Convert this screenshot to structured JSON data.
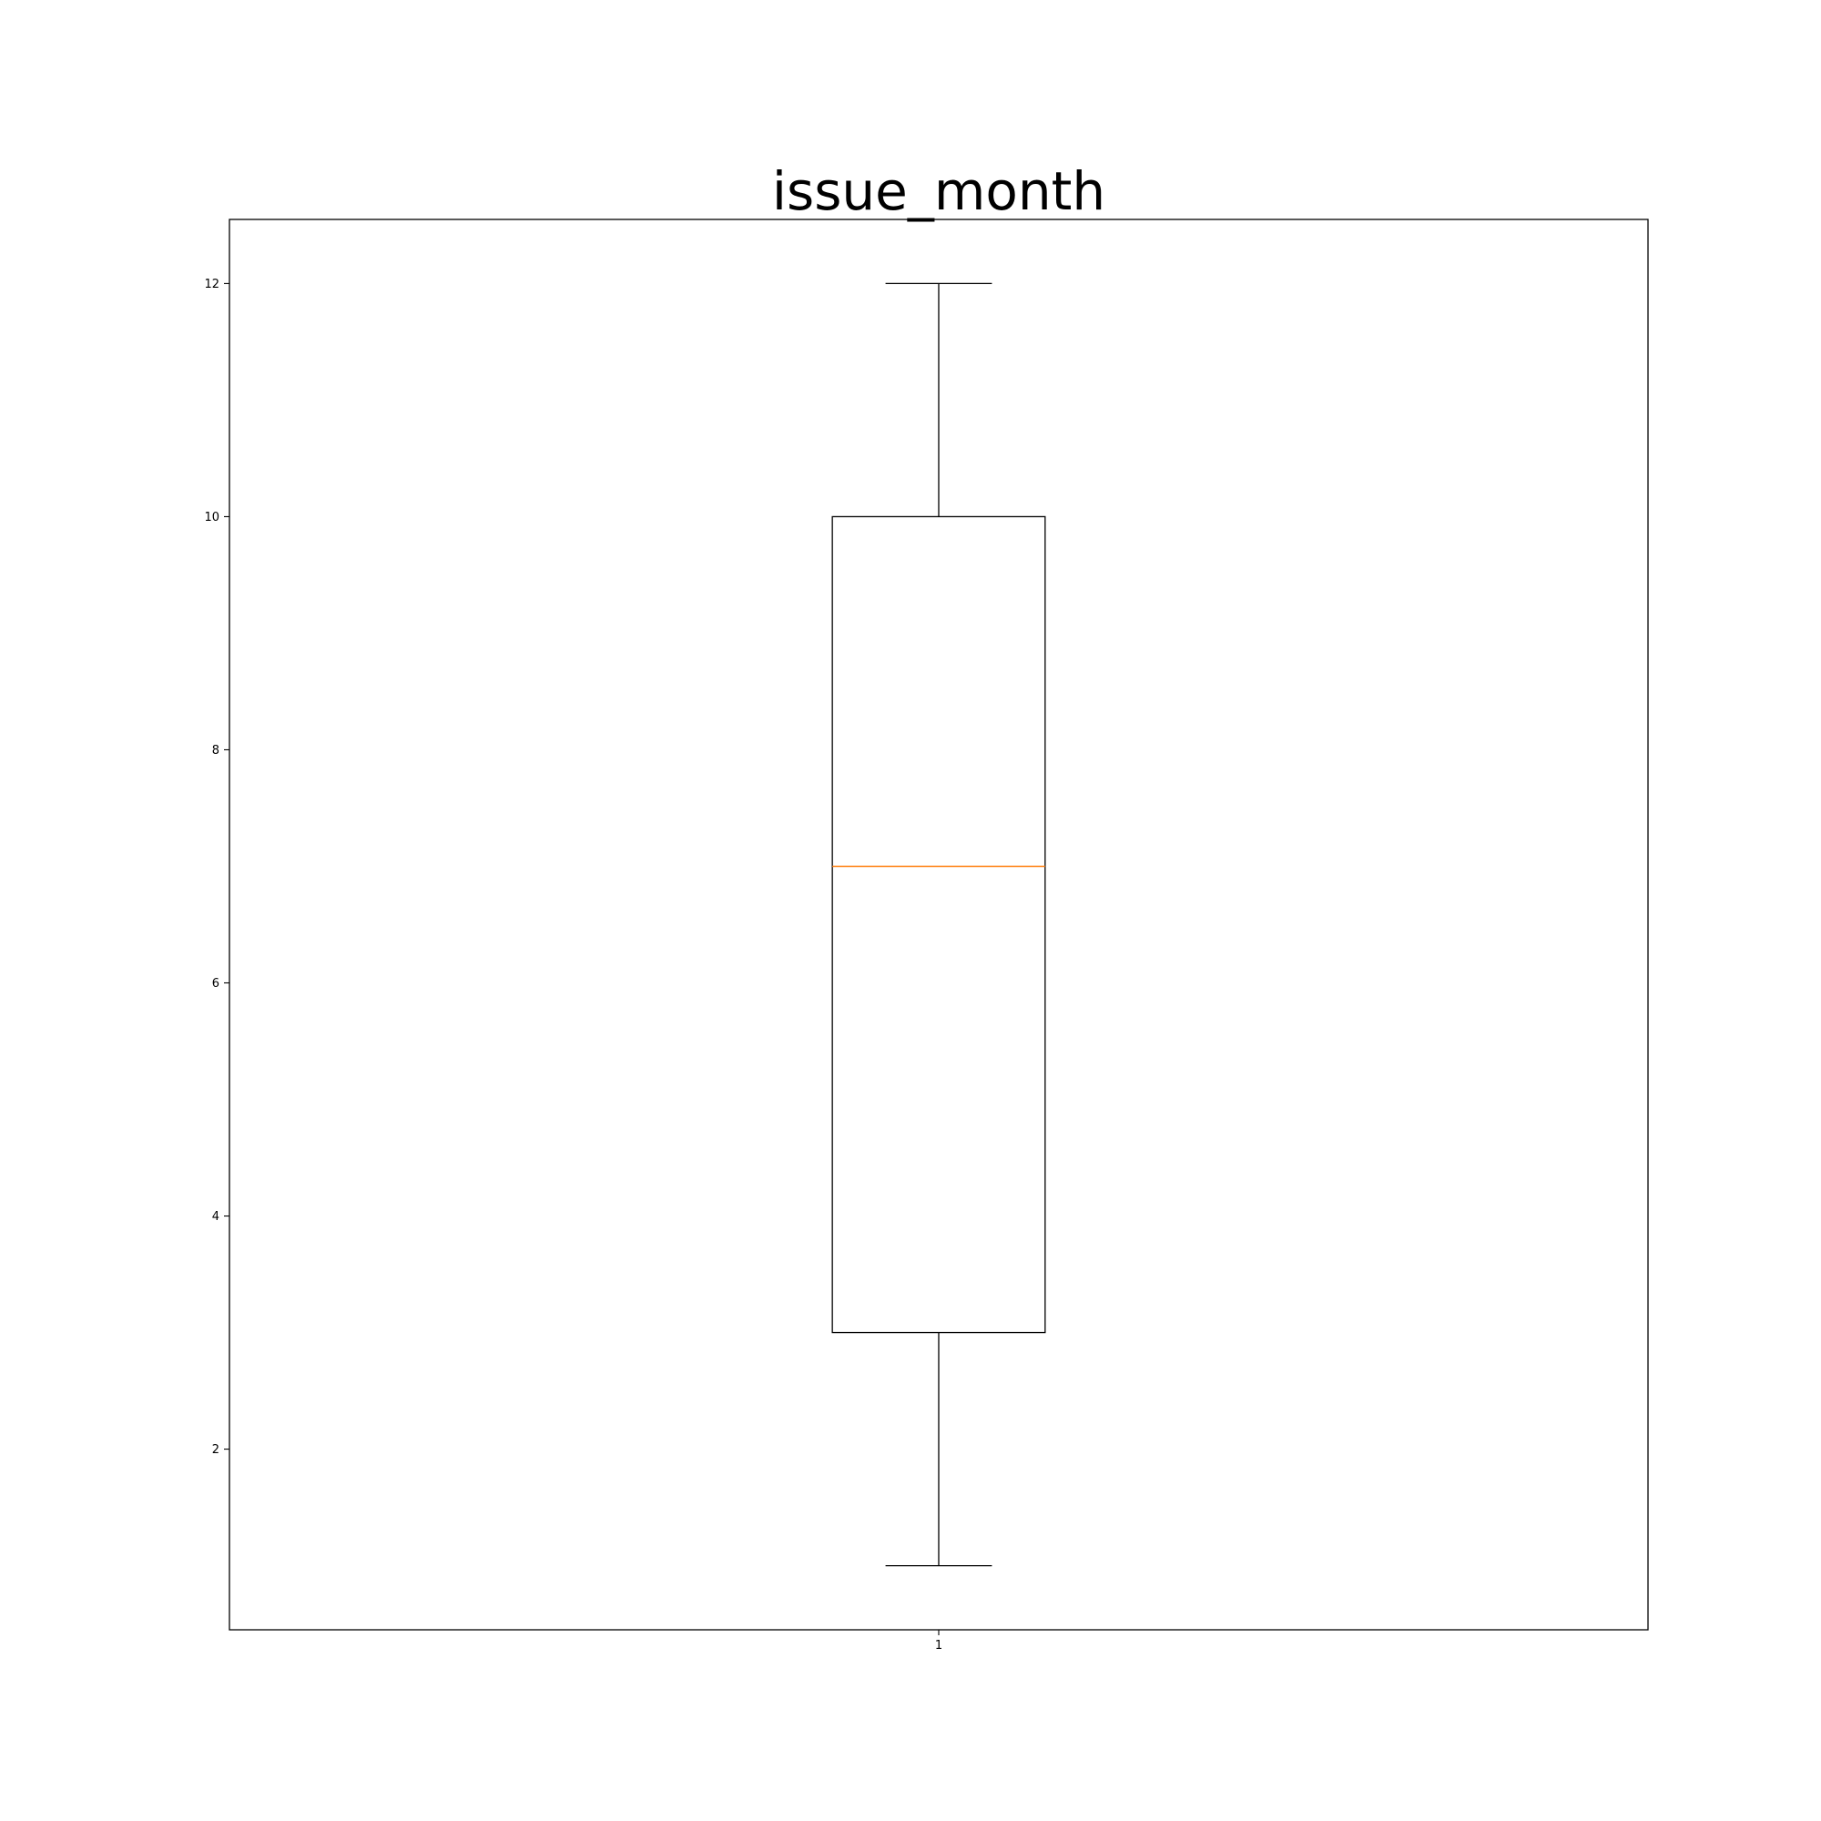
{
  "chart_data": {
    "type": "box",
    "title": "issue_month",
    "xlabel": "",
    "ylabel": "",
    "ylim": [
      0.45,
      12.55
    ],
    "y_ticks": [
      2,
      4,
      6,
      8,
      10,
      12
    ],
    "categories": [
      "1"
    ],
    "boxes": [
      {
        "category": "1",
        "whisker_low": 1,
        "q1": 3,
        "median": 7,
        "q3": 10,
        "whisker_high": 12
      }
    ],
    "grid": false,
    "colors": {
      "box": "#000000",
      "median": "#ff7f0e"
    }
  }
}
